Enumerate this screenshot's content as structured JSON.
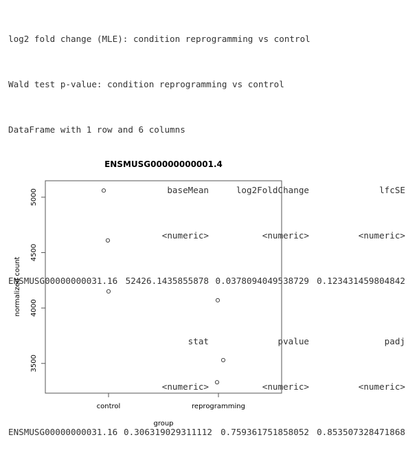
{
  "console": {
    "lines": [
      "log2 fold change (MLE): condition reprogramming vs control",
      "Wald test p-value: condition reprogramming vs control",
      "DataFrame with 1 row and 6 columns"
    ],
    "table1": {
      "headers": [
        "baseMean",
        "log2FoldChange",
        "lfcSE"
      ],
      "types": [
        "<numeric>",
        "<numeric>",
        "<numeric>"
      ],
      "row_name": "ENSMUSG00000000031.16",
      "values": [
        "52426.1435855878",
        "0.0378094049538729",
        "0.123431459804842"
      ]
    },
    "table2": {
      "headers": [
        "stat",
        "pvalue",
        "padj"
      ],
      "types": [
        "<numeric>",
        "<numeric>",
        "<numeric>"
      ],
      "row_name": "ENSMUSG00000000031.16",
      "values": [
        "0.306319029311112",
        "0.759361751858052",
        "0.853507328471868"
      ]
    }
  },
  "chart_data": {
    "type": "scatter",
    "title": "ENSMUSG00000000001.4",
    "xlabel": "group",
    "ylabel": "normalized count",
    "categories": [
      "control",
      "reprogramming"
    ],
    "y_ticks": [
      3500,
      4000,
      4500,
      5000
    ],
    "ylim": [
      3300,
      5080
    ],
    "grid": false,
    "points": [
      {
        "category": "control",
        "y": 5060
      },
      {
        "category": "control",
        "y": 4610
      },
      {
        "category": "control",
        "y": 4150
      },
      {
        "category": "reprogramming",
        "y": 4070
      },
      {
        "category": "reprogramming",
        "y": 3530
      },
      {
        "category": "reprogramming",
        "y": 3330
      }
    ]
  }
}
